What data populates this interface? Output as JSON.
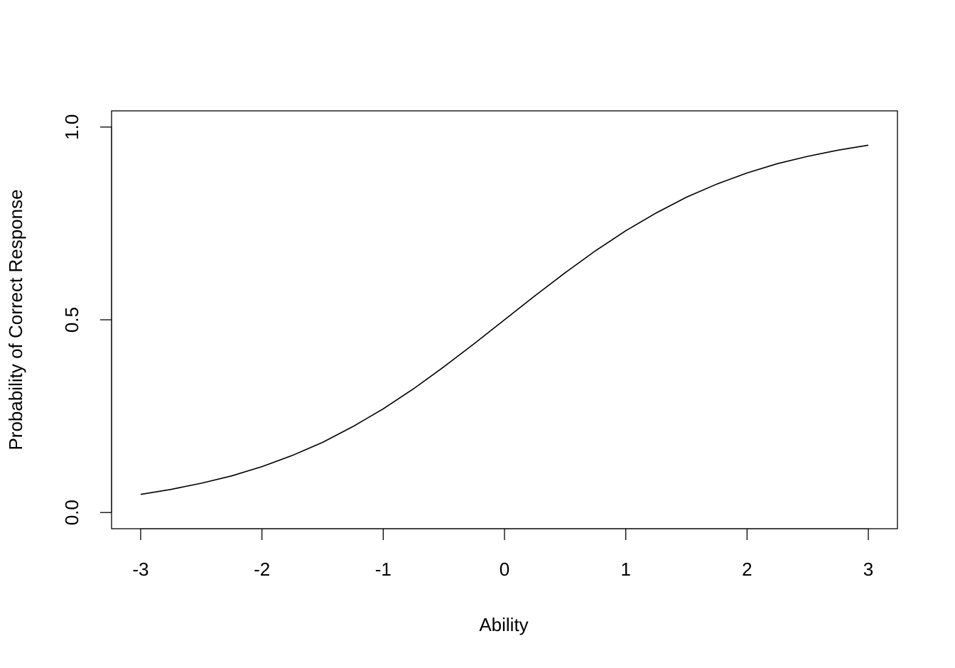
{
  "chart_data": {
    "type": "line",
    "x_label": "Ability",
    "y_label": "Probability of Correct Response",
    "x": [
      -3,
      -2.75,
      -2.5,
      -2.25,
      -2,
      -1.75,
      -1.5,
      -1.25,
      -1,
      -0.75,
      -0.5,
      -0.25,
      0,
      0.25,
      0.5,
      0.75,
      1,
      1.25,
      1.5,
      1.75,
      2,
      2.25,
      2.5,
      2.75,
      3
    ],
    "values": [
      0.047,
      0.06,
      0.076,
      0.095,
      0.119,
      0.148,
      0.182,
      0.223,
      0.269,
      0.321,
      0.378,
      0.438,
      0.5,
      0.562,
      0.622,
      0.679,
      0.731,
      0.777,
      0.818,
      0.852,
      0.881,
      0.905,
      0.924,
      0.94,
      0.953
    ],
    "color": "#000000",
    "xlim": [
      -3.24,
      3.24
    ],
    "ylim": [
      -0.042,
      1.042
    ],
    "xticks": [
      -3,
      -2,
      -1,
      0,
      1,
      2,
      3
    ],
    "yticks": [
      {
        "value": 0,
        "label": "0.0"
      },
      {
        "value": 0.5,
        "label": "0.5"
      },
      {
        "value": 1,
        "label": "1.0"
      }
    ]
  }
}
